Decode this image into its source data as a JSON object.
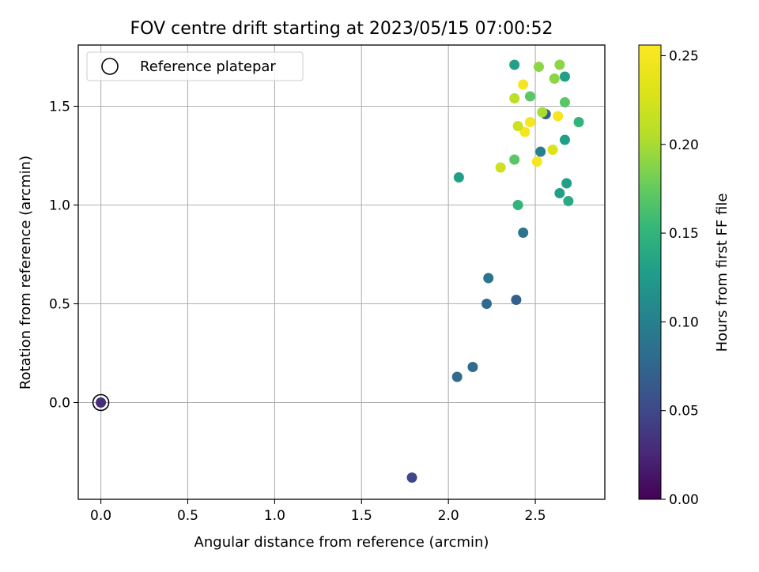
{
  "chart_data": {
    "type": "scatter",
    "title": "FOV centre drift starting at 2023/05/15 07:00:52",
    "xlabel": "Angular distance from reference (arcmin)",
    "ylabel": "Rotation from reference (arcmin)",
    "xlim": [
      -0.13,
      2.9
    ],
    "ylim": [
      -0.49,
      1.81
    ],
    "xticks": [
      0.0,
      0.5,
      1.0,
      1.5,
      2.0,
      2.5
    ],
    "xtick_labels": [
      "0.0",
      "0.5",
      "1.0",
      "1.5",
      "2.0",
      "2.5"
    ],
    "yticks": [
      0.0,
      0.5,
      1.0,
      1.5
    ],
    "ytick_labels": [
      "0.0",
      "0.5",
      "1.0",
      "1.5"
    ],
    "grid": true,
    "legend": {
      "position": "top-left",
      "entries": [
        "Reference platepar"
      ]
    },
    "reference_point": {
      "x": 0.0,
      "y": 0.0
    },
    "colorbar": {
      "label": "Hours from first FF file",
      "min": 0.0,
      "max": 0.256,
      "colormap": "viridis",
      "ticks": [
        0.0,
        0.05,
        0.1,
        0.15,
        0.2,
        0.25
      ],
      "tick_labels": [
        "0.00",
        "0.05",
        "0.10",
        "0.15",
        "0.20",
        "0.25"
      ]
    },
    "points": [
      {
        "x": 0.0,
        "y": 0.0,
        "c": 0.03
      },
      {
        "x": 1.79,
        "y": -0.38,
        "c": 0.05
      },
      {
        "x": 2.05,
        "y": 0.13,
        "c": 0.08
      },
      {
        "x": 2.14,
        "y": 0.18,
        "c": 0.08
      },
      {
        "x": 2.22,
        "y": 0.5,
        "c": 0.08
      },
      {
        "x": 2.23,
        "y": 0.63,
        "c": 0.09
      },
      {
        "x": 2.39,
        "y": 0.52,
        "c": 0.07
      },
      {
        "x": 2.43,
        "y": 0.86,
        "c": 0.09
      },
      {
        "x": 2.4,
        "y": 1.0,
        "c": 0.15
      },
      {
        "x": 2.06,
        "y": 1.14,
        "c": 0.13
      },
      {
        "x": 2.38,
        "y": 1.23,
        "c": 0.17
      },
      {
        "x": 2.3,
        "y": 1.19,
        "c": 0.22
      },
      {
        "x": 2.51,
        "y": 1.22,
        "c": 0.25
      },
      {
        "x": 2.6,
        "y": 1.28,
        "c": 0.23
      },
      {
        "x": 2.53,
        "y": 1.27,
        "c": 0.1
      },
      {
        "x": 2.67,
        "y": 1.33,
        "c": 0.13
      },
      {
        "x": 2.68,
        "y": 1.11,
        "c": 0.13
      },
      {
        "x": 2.64,
        "y": 1.06,
        "c": 0.13
      },
      {
        "x": 2.69,
        "y": 1.02,
        "c": 0.14
      },
      {
        "x": 2.75,
        "y": 1.42,
        "c": 0.15
      },
      {
        "x": 2.44,
        "y": 1.37,
        "c": 0.25
      },
      {
        "x": 2.4,
        "y": 1.4,
        "c": 0.22
      },
      {
        "x": 2.47,
        "y": 1.42,
        "c": 0.25
      },
      {
        "x": 2.56,
        "y": 1.46,
        "c": 0.07
      },
      {
        "x": 2.54,
        "y": 1.47,
        "c": 0.2
      },
      {
        "x": 2.63,
        "y": 1.45,
        "c": 0.25
      },
      {
        "x": 2.38,
        "y": 1.54,
        "c": 0.21
      },
      {
        "x": 2.47,
        "y": 1.55,
        "c": 0.17
      },
      {
        "x": 2.67,
        "y": 1.52,
        "c": 0.17
      },
      {
        "x": 2.43,
        "y": 1.61,
        "c": 0.25
      },
      {
        "x": 2.61,
        "y": 1.64,
        "c": 0.19
      },
      {
        "x": 2.67,
        "y": 1.65,
        "c": 0.13
      },
      {
        "x": 2.38,
        "y": 1.71,
        "c": 0.13
      },
      {
        "x": 2.52,
        "y": 1.7,
        "c": 0.19
      },
      {
        "x": 2.64,
        "y": 1.71,
        "c": 0.19
      }
    ]
  }
}
